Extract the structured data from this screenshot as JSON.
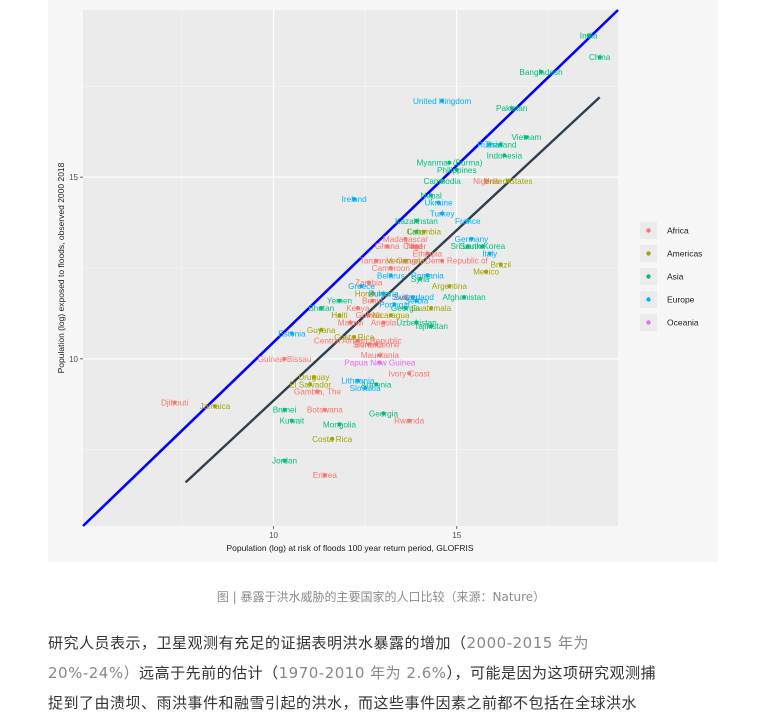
{
  "chart_data": {
    "type": "scatter",
    "xlabel": "Population (log) at risk of floods 100  year return period, GLOFRIS",
    "ylabel": "Population (log) exposed to floods, observed 2000 2018",
    "xlim": [
      4.8,
      19.4
    ],
    "ylim": [
      5.4,
      19.6
    ],
    "xticks": [
      10,
      15
    ],
    "yticks": [
      10,
      15
    ],
    "grid": true,
    "legend_position": "right",
    "background": "#ebebeb",
    "reference_lines": [
      {
        "name": "",
        "color": "#0000ff",
        "x": [
          4.8,
          19.4
        ],
        "y": [
          5.4,
          19.6
        ]
      },
      {
        "name": "",
        "color": "#2f3f4f",
        "x": [
          7.6,
          18.9
        ],
        "y": [
          6.6,
          17.2
        ]
      }
    ],
    "legend": [
      {
        "label": "Africa",
        "color": "#f8766d"
      },
      {
        "label": "Americas",
        "color": "#a3a500"
      },
      {
        "label": "Asia",
        "color": "#00bf7d"
      },
      {
        "label": "Europe",
        "color": "#00b0f6"
      },
      {
        "label": "Oceania",
        "color": "#e76bf3"
      }
    ],
    "points": [
      {
        "label": "India",
        "region": "Asia",
        "x": 18.6,
        "y": 18.9
      },
      {
        "label": "China",
        "region": "Asia",
        "x": 18.9,
        "y": 18.3
      },
      {
        "label": "Bangladesh",
        "region": "Asia",
        "x": 17.3,
        "y": 17.9
      },
      {
        "label": "United Kingdom",
        "region": "Europe",
        "x": 14.6,
        "y": 17.1
      },
      {
        "label": "Pakistan",
        "region": "Asia",
        "x": 16.5,
        "y": 16.9
      },
      {
        "label": "Vietnam",
        "region": "Asia",
        "x": 16.9,
        "y": 16.1
      },
      {
        "label": "Russia",
        "region": "Europe",
        "x": 15.9,
        "y": 15.9
      },
      {
        "label": "Thailand",
        "region": "Asia",
        "x": 16.2,
        "y": 15.9
      },
      {
        "label": "Indonesia",
        "region": "Asia",
        "x": 16.3,
        "y": 15.6
      },
      {
        "label": "Myanmar (Burma)",
        "region": "Asia",
        "x": 14.8,
        "y": 15.4
      },
      {
        "label": "Philippines",
        "region": "Asia",
        "x": 15.0,
        "y": 15.2
      },
      {
        "label": "Cambodia",
        "region": "Asia",
        "x": 14.6,
        "y": 14.9
      },
      {
        "label": "Nigeria",
        "region": "Africa",
        "x": 15.8,
        "y": 14.9
      },
      {
        "label": "United States",
        "region": "Americas",
        "x": 16.4,
        "y": 14.9
      },
      {
        "label": "Nepal",
        "region": "Asia",
        "x": 14.3,
        "y": 14.5
      },
      {
        "label": "Ireland",
        "region": "Europe",
        "x": 12.2,
        "y": 14.4
      },
      {
        "label": "Ukraine",
        "region": "Europe",
        "x": 14.5,
        "y": 14.3
      },
      {
        "label": "Turkey",
        "region": "Europe",
        "x": 14.6,
        "y": 14.0
      },
      {
        "label": "France",
        "region": "Europe",
        "x": 15.3,
        "y": 13.8
      },
      {
        "label": "Kazakhstan",
        "region": "Asia",
        "x": 13.9,
        "y": 13.8
      },
      {
        "label": "Laos",
        "region": "Asia",
        "x": 13.9,
        "y": 13.5
      },
      {
        "label": "Colombia",
        "region": "Americas",
        "x": 14.1,
        "y": 13.5
      },
      {
        "label": "Madagascar",
        "region": "Africa",
        "x": 13.6,
        "y": 13.3
      },
      {
        "label": "Germany",
        "region": "Europe",
        "x": 15.4,
        "y": 13.3
      },
      {
        "label": "Ghana",
        "region": "Africa",
        "x": 13.1,
        "y": 13.1
      },
      {
        "label": "Chad",
        "region": "Africa",
        "x": 13.8,
        "y": 13.1
      },
      {
        "label": "Niger",
        "region": "Africa",
        "x": 13.9,
        "y": 13.1
      },
      {
        "label": "Sri Lanka",
        "region": "Asia",
        "x": 15.3,
        "y": 13.1
      },
      {
        "label": "South Korea",
        "region": "Asia",
        "x": 15.7,
        "y": 13.1
      },
      {
        "label": "Italy",
        "region": "Europe",
        "x": 15.9,
        "y": 12.9
      },
      {
        "label": "Ethiopia",
        "region": "Africa",
        "x": 14.2,
        "y": 12.9
      },
      {
        "label": "Tanzania",
        "region": "Africa",
        "x": 12.8,
        "y": 12.7
      },
      {
        "label": "Venezuela",
        "region": "Americas",
        "x": 13.6,
        "y": 12.7
      },
      {
        "label": "Congo, Dem. Republic of",
        "region": "Africa",
        "x": 14.6,
        "y": 12.7
      },
      {
        "label": "Brazil",
        "region": "Americas",
        "x": 16.2,
        "y": 12.6
      },
      {
        "label": "Cameroon",
        "region": "Africa",
        "x": 13.2,
        "y": 12.5
      },
      {
        "label": "Mexico",
        "region": "Americas",
        "x": 15.8,
        "y": 12.4
      },
      {
        "label": "Belarus",
        "region": "Europe",
        "x": 13.2,
        "y": 12.3
      },
      {
        "label": "Romania",
        "region": "Europe",
        "x": 14.2,
        "y": 12.3
      },
      {
        "label": "Syria",
        "region": "Asia",
        "x": 14.0,
        "y": 12.2
      },
      {
        "label": "Zambia",
        "region": "Africa",
        "x": 12.6,
        "y": 12.1
      },
      {
        "label": "Greece",
        "region": "Europe",
        "x": 12.4,
        "y": 12.0
      },
      {
        "label": "Argentina",
        "region": "Americas",
        "x": 14.8,
        "y": 12.0
      },
      {
        "label": "Honduras",
        "region": "Americas",
        "x": 12.7,
        "y": 11.8
      },
      {
        "label": "Bulgaria",
        "region": "Europe",
        "x": 13.0,
        "y": 11.8
      },
      {
        "label": "Sudan",
        "region": "Africa",
        "x": 13.6,
        "y": 11.7
      },
      {
        "label": "Switzerland",
        "region": "Europe",
        "x": 13.8,
        "y": 11.7
      },
      {
        "label": "Afghanistan",
        "region": "Asia",
        "x": 15.2,
        "y": 11.7
      },
      {
        "label": "Benin",
        "region": "Africa",
        "x": 12.7,
        "y": 11.6
      },
      {
        "label": "Serbia",
        "region": "Europe",
        "x": 13.9,
        "y": 11.6
      },
      {
        "label": "Bhutan",
        "region": "Asia",
        "x": 11.3,
        "y": 11.4
      },
      {
        "label": "Yemen",
        "region": "Asia",
        "x": 11.8,
        "y": 11.6
      },
      {
        "label": "Kenya",
        "region": "Africa",
        "x": 12.3,
        "y": 11.4
      },
      {
        "label": "Portugal",
        "region": "Europe",
        "x": 13.3,
        "y": 11.5
      },
      {
        "label": "Georgia",
        "region": "Asia",
        "x": 13.6,
        "y": 11.4
      },
      {
        "label": "Guatemala",
        "region": "Americas",
        "x": 14.3,
        "y": 11.4
      },
      {
        "label": "Haiti",
        "region": "Americas",
        "x": 11.8,
        "y": 11.2
      },
      {
        "label": "Guinea",
        "region": "Africa",
        "x": 12.6,
        "y": 11.2
      },
      {
        "label": "Nicaragua",
        "region": "Americas",
        "x": 13.2,
        "y": 11.2
      },
      {
        "label": "Malawi",
        "region": "Africa",
        "x": 12.1,
        "y": 11.0
      },
      {
        "label": "Angola",
        "region": "Africa",
        "x": 13.0,
        "y": 11.0
      },
      {
        "label": "Uzbekistan",
        "region": "Asia",
        "x": 13.9,
        "y": 11.0
      },
      {
        "label": "Tajikistan",
        "region": "Asia",
        "x": 14.3,
        "y": 10.9
      },
      {
        "label": "Estonia",
        "region": "Europe",
        "x": 10.5,
        "y": 10.7
      },
      {
        "label": "Guyana",
        "region": "Americas",
        "x": 11.3,
        "y": 10.8
      },
      {
        "label": "Costa Rica",
        "region": "Americas",
        "x": 12.2,
        "y": 10.6
      },
      {
        "label": "Central African Republic",
        "region": "Africa",
        "x": 12.3,
        "y": 10.5
      },
      {
        "label": "Burundi",
        "region": "Africa",
        "x": 12.6,
        "y": 10.4
      },
      {
        "label": "Sierra Leone",
        "region": "Africa",
        "x": 12.8,
        "y": 10.4
      },
      {
        "label": "Guinea-Bissau",
        "region": "Africa",
        "x": 10.3,
        "y": 10.0
      },
      {
        "label": "Mauritania",
        "region": "Africa",
        "x": 12.9,
        "y": 10.1
      },
      {
        "label": "Papua New Guinea",
        "region": "Oceania",
        "x": 12.9,
        "y": 9.9
      },
      {
        "label": "Uruguay",
        "region": "Americas",
        "x": 11.1,
        "y": 9.5
      },
      {
        "label": "Ivory Coast",
        "region": "Africa",
        "x": 13.7,
        "y": 9.6
      },
      {
        "label": "Lithuania",
        "region": "Europe",
        "x": 12.3,
        "y": 9.4
      },
      {
        "label": "El Salvador",
        "region": "Americas",
        "x": 11.0,
        "y": 9.3
      },
      {
        "label": "Armenia",
        "region": "Asia",
        "x": 12.8,
        "y": 9.3
      },
      {
        "label": "Gambia, The",
        "region": "Africa",
        "x": 11.2,
        "y": 9.1
      },
      {
        "label": "Slovakia",
        "region": "Europe",
        "x": 12.5,
        "y": 9.2
      },
      {
        "label": "Djibouti",
        "region": "Africa",
        "x": 7.3,
        "y": 8.8
      },
      {
        "label": "Jamaica",
        "region": "Americas",
        "x": 8.4,
        "y": 8.7
      },
      {
        "label": "Brunei",
        "region": "Asia",
        "x": 10.3,
        "y": 8.6
      },
      {
        "label": "Botswana",
        "region": "Africa",
        "x": 11.4,
        "y": 8.6
      },
      {
        "label": "Georgia",
        "region": "Asia",
        "x": 13.0,
        "y": 8.5
      },
      {
        "label": "Kuwait",
        "region": "Asia",
        "x": 10.5,
        "y": 8.3
      },
      {
        "label": "Rwanda",
        "region": "Africa",
        "x": 13.7,
        "y": 8.3
      },
      {
        "label": "Mongolia",
        "region": "Asia",
        "x": 11.8,
        "y": 8.2
      },
      {
        "label": "Costa Rica",
        "region": "Americas",
        "x": 11.6,
        "y": 7.8
      },
      {
        "label": "Jordan",
        "region": "Asia",
        "x": 10.3,
        "y": 7.2
      },
      {
        "label": "Eritrea",
        "region": "Africa",
        "x": 11.4,
        "y": 6.8
      }
    ]
  },
  "caption": "图 | 暴露于洪水威胁的主要国家的人口比较（来源：Nature）",
  "article": {
    "line1_a": "研究人员表示，卫星观测有充足的证据表明洪水暴露的增加（",
    "line1_b": "2000-2015 年为",
    "line2_a": "20%-24%）",
    "line2_b": "远高于先前的估计（",
    "line2_c": "1970-2010 年为 2.6%",
    "line2_d": "），可能是因为这项研究观测捕",
    "line3": "捉到了由溃坝、雨洪事件和融雪引起的洪水，而这些事件因素之前都不包括在全球洪水"
  }
}
